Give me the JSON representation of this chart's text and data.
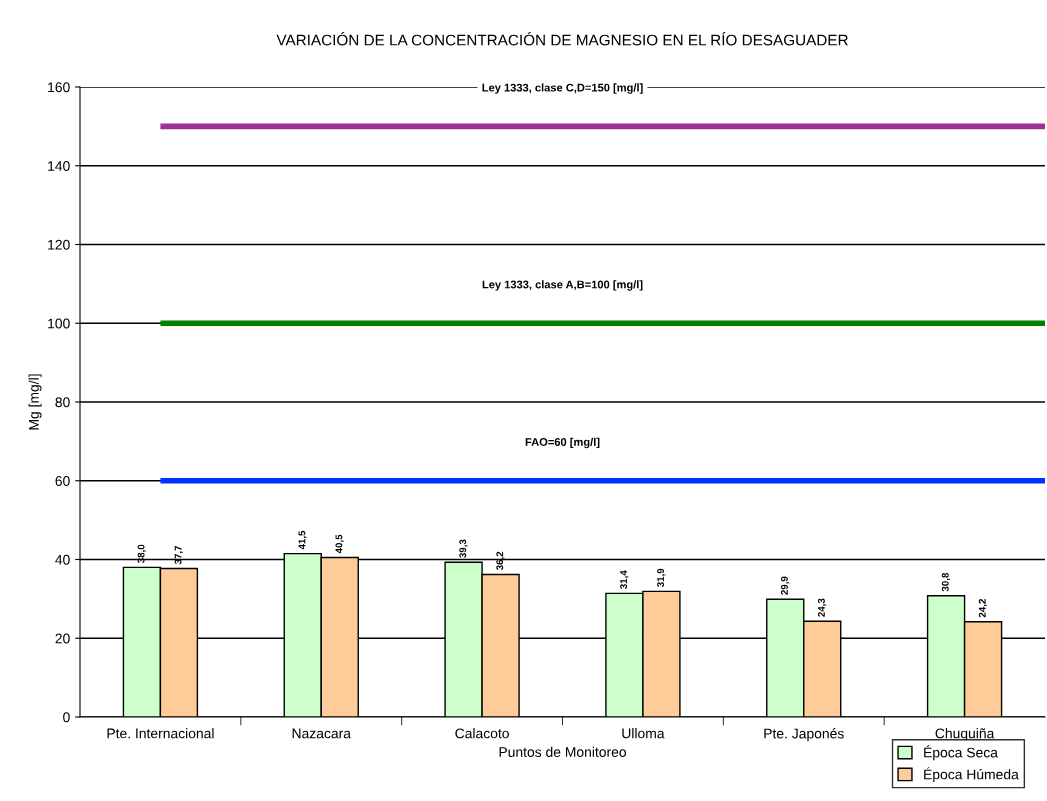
{
  "chart_data": {
    "type": "bar",
    "title": "VARIACIÓN DE LA CONCENTRACIÓN DE MAGNESIO EN EL RÍO DESAGUADER",
    "xlabel": "Puntos de Monitoreo",
    "ylabel": "Mg [mg/l]",
    "categories": [
      "Pte. Internacional",
      "Nazacara",
      "Calacoto",
      "Ulloma",
      "Pte. Japonés",
      "Chuquiña"
    ],
    "series": [
      {
        "name": "Época Seca",
        "color": "#ccffcc",
        "values": [
          38.0,
          41.5,
          39.3,
          31.4,
          29.9,
          30.8
        ],
        "value_labels": [
          "38,0",
          "41,5",
          "39,3",
          "31,4",
          "29,9",
          "30,8"
        ]
      },
      {
        "name": "Época Húmeda",
        "color": "#ffcc99",
        "values": [
          37.7,
          40.5,
          36.2,
          31.9,
          24.3,
          24.2
        ],
        "value_labels": [
          "37,7",
          "40,5",
          "36,2",
          "31,9",
          "24,3",
          "24,2"
        ]
      }
    ],
    "ylim": [
      0,
      160
    ],
    "yticks": [
      0,
      20,
      40,
      60,
      80,
      100,
      120,
      140,
      160
    ],
    "grid": "y",
    "legend": "bottom right",
    "ref_lines": [
      {
        "axis": "y",
        "value": 150,
        "label": "Ley 1333, clase C,D=150 [mg/l]",
        "color": "#993399"
      },
      {
        "axis": "y",
        "value": 100,
        "label": "Ley 1333, clase A,B=100 [mg/l]",
        "color": "#008000"
      },
      {
        "axis": "y",
        "value": 60,
        "label": "FAO=60 [mg/l]",
        "color": "#0033ff"
      }
    ]
  }
}
